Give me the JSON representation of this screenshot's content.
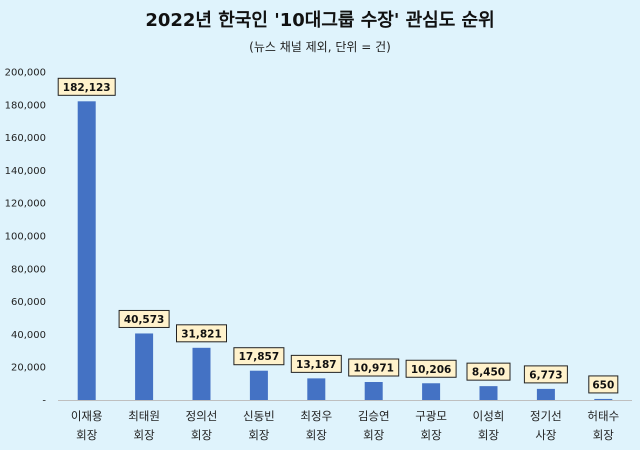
{
  "chart_data": {
    "type": "bar",
    "title": "2022년 한국인 '10대그룹 수장' 관심도 순위",
    "subtitle": "(뉴스 채널 제외, 단위 = 건)",
    "categories": [
      [
        "이재용",
        "회장"
      ],
      [
        "최태원",
        "회장"
      ],
      [
        "정의선",
        "회장"
      ],
      [
        "신동빈",
        "회장"
      ],
      [
        "최정우",
        "회장"
      ],
      [
        "김승연",
        "회장"
      ],
      [
        "구광모",
        "회장"
      ],
      [
        "이성희",
        "회장"
      ],
      [
        "정기선",
        "사장"
      ],
      [
        "허태수",
        "회장"
      ]
    ],
    "values": [
      182123,
      40573,
      31821,
      17857,
      13187,
      10971,
      10206,
      8450,
      6773,
      650
    ],
    "value_labels": [
      "182,123",
      "40,573",
      "31,821",
      "17,857",
      "13,187",
      "10,971",
      "10,206",
      "8,450",
      "6,773",
      "650"
    ],
    "ylim": [
      0,
      200000
    ],
    "yticks": [
      0,
      20000,
      40000,
      60000,
      80000,
      100000,
      120000,
      140000,
      160000,
      180000,
      200000
    ],
    "ytick_labels": [
      "-",
      "20,000",
      "40,000",
      "60,000",
      "80,000",
      "100,000",
      "120,000",
      "140,000",
      "160,000",
      "180,000",
      "200,000"
    ],
    "grid": false,
    "legend": "none",
    "colors": {
      "bar": "#4472c4",
      "label_bg": "#fff2cc",
      "background": "#dff3fc"
    }
  }
}
